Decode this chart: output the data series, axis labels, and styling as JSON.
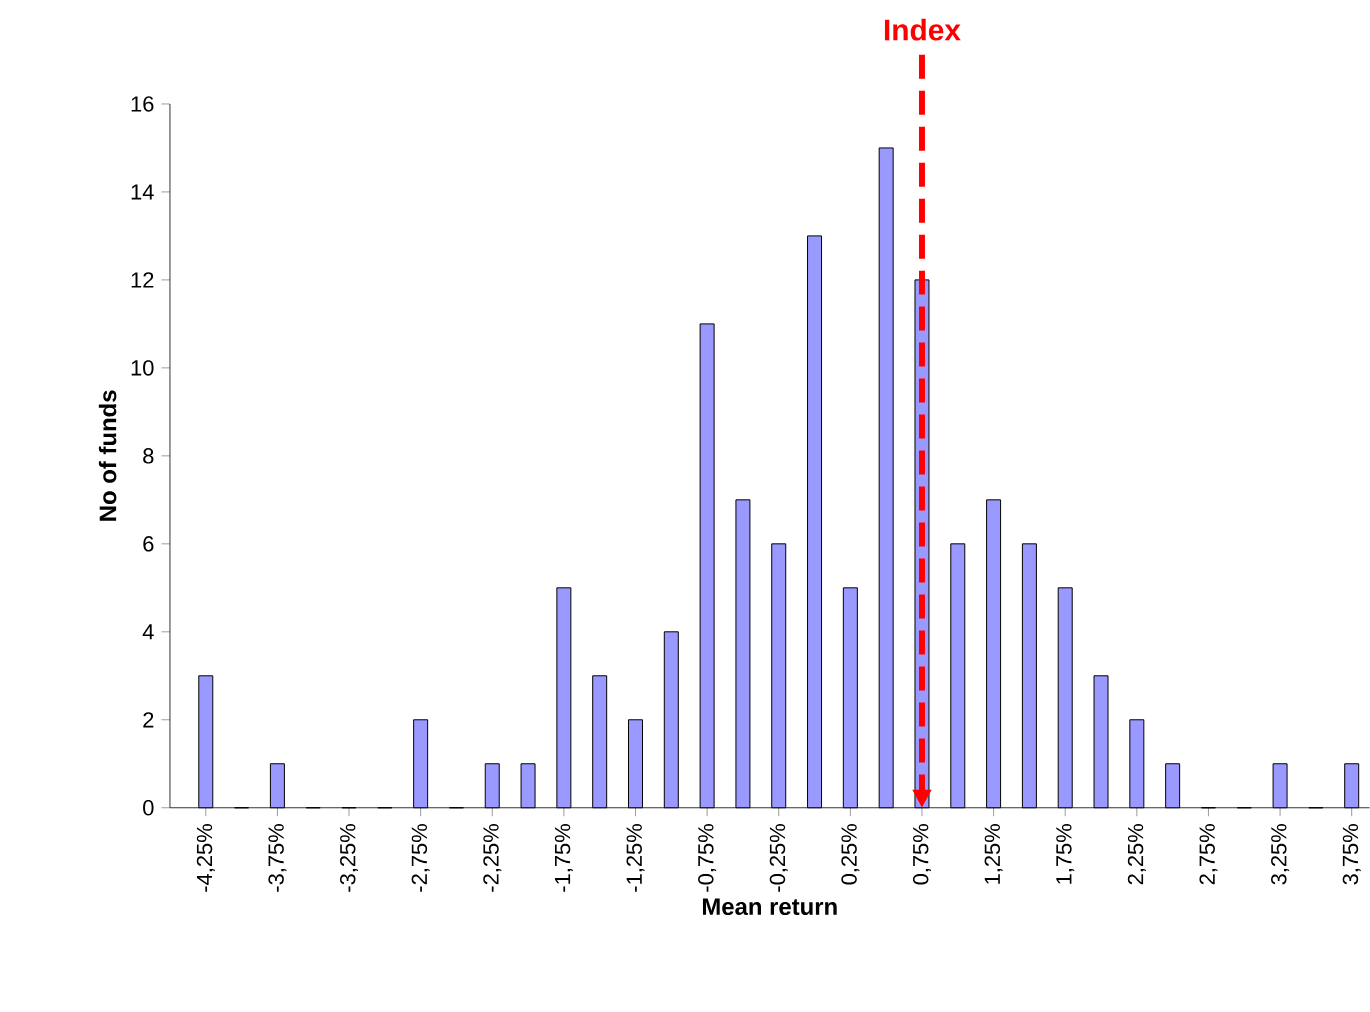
{
  "chart_data": {
    "type": "bar",
    "xlabel": "Mean return",
    "ylabel": "No of funds",
    "color": "#9999ff",
    "x": [
      -4.25,
      -4.0,
      -3.75,
      -3.5,
      -3.25,
      -3.0,
      -2.75,
      -2.5,
      -2.25,
      -2.0,
      -1.75,
      -1.5,
      -1.25,
      -1.0,
      -0.75,
      -0.5,
      -0.25,
      0.0,
      0.25,
      0.5,
      0.75,
      1.0,
      1.25,
      1.5,
      1.75,
      2.0,
      2.25,
      2.5,
      2.75,
      3.0,
      3.25,
      3.5,
      3.75
    ],
    "values": [
      3,
      0,
      1,
      0,
      0,
      0,
      2,
      0,
      1,
      1,
      5,
      3,
      2,
      4,
      11,
      7,
      6,
      13,
      5,
      15,
      12,
      6,
      7,
      6,
      5,
      3,
      2,
      1,
      0,
      0,
      1,
      0,
      1
    ],
    "xlim": [
      -4.5,
      3.875
    ],
    "ylim": [
      0,
      16
    ],
    "xticks": [
      {
        "value": -4.25,
        "label": "-4,25%"
      },
      {
        "value": -3.75,
        "label": "-3,75%"
      },
      {
        "value": -3.25,
        "label": "-3,25%"
      },
      {
        "value": -2.75,
        "label": "-2,75%"
      },
      {
        "value": -2.25,
        "label": "-2,25%"
      },
      {
        "value": -1.75,
        "label": "-1,75%"
      },
      {
        "value": -1.25,
        "label": "-1,25%"
      },
      {
        "value": -0.75,
        "label": "-0,75%"
      },
      {
        "value": -0.25,
        "label": "-0,25%"
      },
      {
        "value": 0.25,
        "label": "0,25%"
      },
      {
        "value": 0.75,
        "label": "0,75%"
      },
      {
        "value": 1.25,
        "label": "1,25%"
      },
      {
        "value": 1.75,
        "label": "1,75%"
      },
      {
        "value": 2.25,
        "label": "2,25%"
      },
      {
        "value": 2.75,
        "label": "2,75%"
      },
      {
        "value": 3.25,
        "label": "3,25%"
      },
      {
        "value": 3.75,
        "label": "3,75%"
      }
    ],
    "yticks": [
      0,
      2,
      4,
      6,
      8,
      10,
      12,
      14,
      16
    ],
    "ref_lines": [
      {
        "axis": "x",
        "value": 0.75,
        "label": "Index",
        "color": "#ff0000",
        "line_style": "dashed"
      }
    ]
  }
}
